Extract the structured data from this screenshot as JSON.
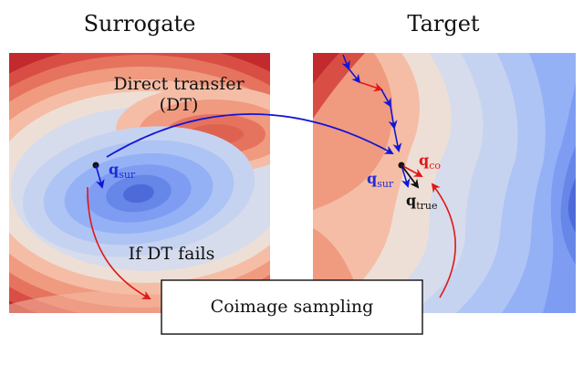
{
  "panels": {
    "left_title": "Surrogate",
    "right_title": "Target"
  },
  "annotations": {
    "direct_transfer_line1": "Direct transfer",
    "direct_transfer_line2": "(DT)",
    "if_dt_fails": "If DT fails",
    "box_label": "Coimage sampling"
  },
  "vectors": {
    "q_sur": {
      "base": "q",
      "sub": "sur",
      "color": "#1f2bd6"
    },
    "q_co": {
      "base": "q",
      "sub": "co",
      "color": "#e01818"
    },
    "q_true": {
      "base": "q",
      "sub": "true",
      "color": "#111111"
    }
  },
  "colors": {
    "dt_arrow": "#1414d4",
    "fail_arrow": "#e01818",
    "path_blue": "#1414d4",
    "path_red": "#e01818"
  }
}
